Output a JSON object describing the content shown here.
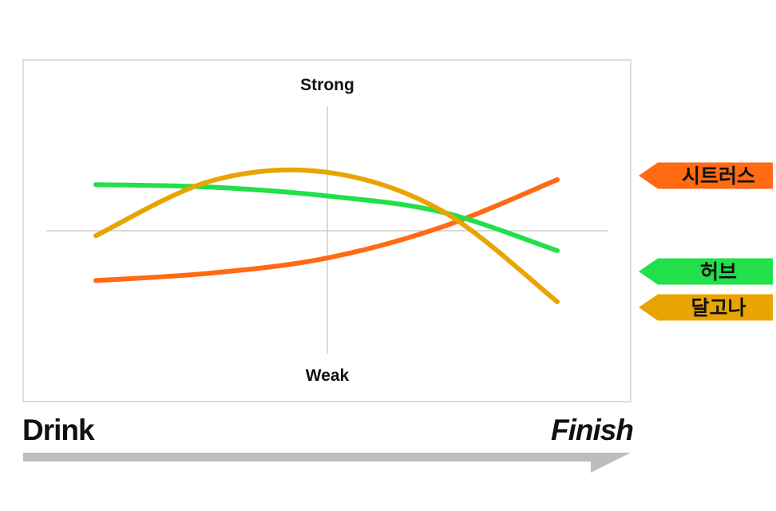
{
  "chart_data": {
    "type": "line",
    "axis_labels": {
      "top": "Strong",
      "bottom": "Weak",
      "start": "Drink",
      "end": "Finish"
    },
    "x": [
      0,
      0.25,
      0.5,
      0.75,
      1
    ],
    "ylim": [
      -1,
      1
    ],
    "grid": false,
    "legend_position": "right",
    "series": [
      {
        "name": "시트러스",
        "color": "#FF6A13",
        "values": [
          -0.4,
          -0.34,
          -0.22,
          0.03,
          0.41
        ]
      },
      {
        "name": "허브",
        "color": "#22E04A",
        "values": [
          0.37,
          0.35,
          0.28,
          0.15,
          -0.16
        ]
      },
      {
        "name": "달고나",
        "color": "#E8A400",
        "values": [
          -0.04,
          0.4,
          0.47,
          0.16,
          -0.57
        ]
      }
    ]
  }
}
